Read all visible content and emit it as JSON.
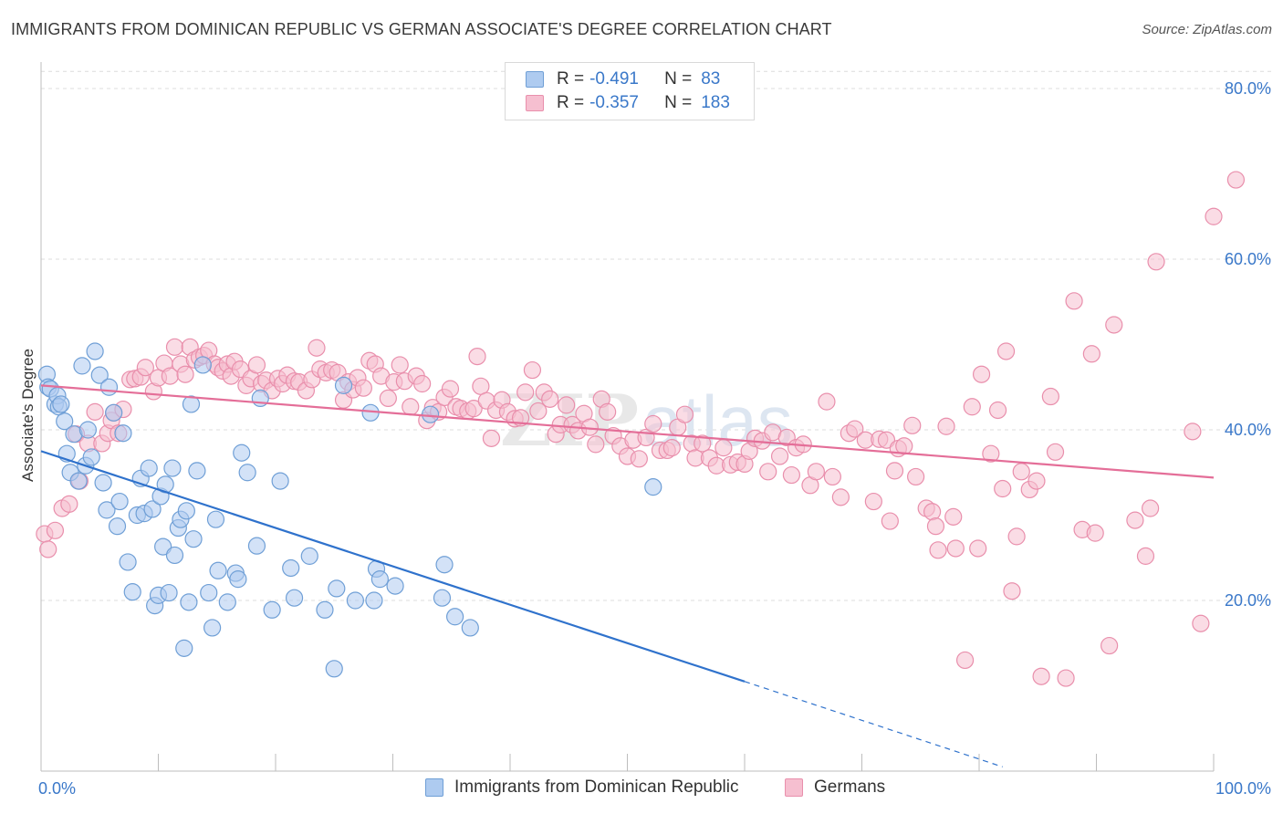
{
  "title": "IMMIGRANTS FROM DOMINICAN REPUBLIC VS GERMAN ASSOCIATE'S DEGREE CORRELATION CHART",
  "source": "Source: ZipAtlas.com",
  "watermark": {
    "zip": "ZIP",
    "atlas": "atlas"
  },
  "colors": {
    "blue_fill": "#aecbf0",
    "blue_stroke": "#6f9fd6",
    "blue_line": "#2f72cc",
    "pink_fill": "#f6bfd0",
    "pink_stroke": "#e98fac",
    "pink_line": "#e46e98",
    "accent_text": "#3a78c9",
    "grid": "#dcdcdc"
  },
  "legend_top": [
    {
      "r_label": "R =",
      "r_value": "-0.491",
      "n_label": "N =",
      "n_value": "83"
    },
    {
      "r_label": "R =",
      "r_value": "-0.357",
      "n_label": "N =",
      "n_value": "183"
    }
  ],
  "legend_bottom": [
    "Immigrants from Dominican Republic",
    "Germans"
  ],
  "chart_data": {
    "type": "scatter",
    "title": "IMMIGRANTS FROM DOMINICAN REPUBLIC VS GERMAN ASSOCIATE'S DEGREE CORRELATION CHART",
    "xlabel": "",
    "ylabel": "Associate's Degree",
    "xlim": [
      0,
      100
    ],
    "ylim": [
      0,
      82
    ],
    "x_tick_labels": [
      "0.0%",
      "100.0%"
    ],
    "y_ticks": [
      20,
      40,
      60,
      80
    ],
    "y_tick_labels": [
      "20.0%",
      "40.0%",
      "60.0%",
      "80.0%"
    ],
    "grid": true,
    "legend_position": "top-center",
    "series": [
      {
        "name": "Immigrants from Dominican Republic",
        "color": "blue",
        "r": -0.491,
        "n": 83,
        "trend": {
          "x0": 0,
          "y0": 37.5,
          "x1": 60,
          "y1": 10.5,
          "dash_to_x": 82,
          "dash_to_y": 0.5
        },
        "points": [
          [
            0.5,
            46.5
          ],
          [
            0.6,
            45
          ],
          [
            0.8,
            44.8
          ],
          [
            1.2,
            43
          ],
          [
            1.4,
            44
          ],
          [
            1.5,
            42.7
          ],
          [
            1.7,
            43
          ],
          [
            2,
            41
          ],
          [
            2.2,
            37.2
          ],
          [
            2.5,
            35
          ],
          [
            2.8,
            39.5
          ],
          [
            3.2,
            34
          ],
          [
            3.5,
            47.5
          ],
          [
            3.8,
            35.8
          ],
          [
            4,
            40
          ],
          [
            4.3,
            36.8
          ],
          [
            4.6,
            49.2
          ],
          [
            5,
            46.4
          ],
          [
            5.3,
            33.8
          ],
          [
            5.6,
            30.6
          ],
          [
            5.8,
            45
          ],
          [
            6.2,
            42
          ],
          [
            6.5,
            28.7
          ],
          [
            6.7,
            31.6
          ],
          [
            7,
            39.6
          ],
          [
            7.4,
            24.5
          ],
          [
            7.8,
            21
          ],
          [
            8.2,
            30
          ],
          [
            8.5,
            34.3
          ],
          [
            8.8,
            30.2
          ],
          [
            9.2,
            35.5
          ],
          [
            9.5,
            30.7
          ],
          [
            9.7,
            19.4
          ],
          [
            10,
            20.6
          ],
          [
            10.2,
            32.2
          ],
          [
            10.4,
            26.3
          ],
          [
            10.6,
            33.6
          ],
          [
            10.9,
            20.9
          ],
          [
            11.2,
            35.5
          ],
          [
            11.4,
            25.3
          ],
          [
            11.7,
            28.5
          ],
          [
            11.9,
            29.5
          ],
          [
            12.2,
            14.4
          ],
          [
            12.4,
            30.5
          ],
          [
            12.6,
            19.8
          ],
          [
            12.8,
            43
          ],
          [
            13,
            27.2
          ],
          [
            13.3,
            35.2
          ],
          [
            13.8,
            47.6
          ],
          [
            14.3,
            20.9
          ],
          [
            14.6,
            16.8
          ],
          [
            14.9,
            29.5
          ],
          [
            15.1,
            23.5
          ],
          [
            15.9,
            19.8
          ],
          [
            16.6,
            23.2
          ],
          [
            16.8,
            22.5
          ],
          [
            17.1,
            37.3
          ],
          [
            17.6,
            35
          ],
          [
            18.4,
            26.4
          ],
          [
            18.7,
            43.7
          ],
          [
            19.7,
            18.9
          ],
          [
            20.4,
            34
          ],
          [
            21.3,
            23.8
          ],
          [
            21.6,
            20.3
          ],
          [
            22.9,
            25.2
          ],
          [
            24.2,
            18.9
          ],
          [
            25,
            12
          ],
          [
            25.2,
            21.4
          ],
          [
            25.8,
            45.2
          ],
          [
            26.8,
            20
          ],
          [
            28.1,
            42
          ],
          [
            28.4,
            20
          ],
          [
            28.6,
            23.7
          ],
          [
            28.9,
            22.5
          ],
          [
            30.2,
            21.7
          ],
          [
            33.2,
            41.8
          ],
          [
            34.2,
            20.3
          ],
          [
            34.4,
            24.2
          ],
          [
            35.3,
            18.1
          ],
          [
            36.6,
            16.8
          ],
          [
            52.2,
            33.3
          ]
        ]
      },
      {
        "name": "Germans",
        "color": "pink",
        "r": -0.357,
        "n": 183,
        "trend": {
          "x0": 0,
          "y0": 45.2,
          "x1": 100,
          "y1": 34.4
        },
        "points": [
          [
            0.3,
            27.8
          ],
          [
            0.6,
            26
          ],
          [
            1.2,
            28.2
          ],
          [
            1.8,
            30.8
          ],
          [
            2.4,
            31.3
          ],
          [
            3,
            39.5
          ],
          [
            3.3,
            34
          ],
          [
            4,
            38.4
          ],
          [
            4.6,
            42.1
          ],
          [
            5.2,
            38.4
          ],
          [
            5.7,
            39.6
          ],
          [
            6,
            41.1
          ],
          [
            6.2,
            42
          ],
          [
            6.6,
            39.6
          ],
          [
            7,
            42.4
          ],
          [
            7.6,
            45.9
          ],
          [
            8,
            46
          ],
          [
            8.5,
            46.2
          ],
          [
            8.9,
            47.3
          ],
          [
            9.6,
            44.5
          ],
          [
            10,
            46.1
          ],
          [
            10.5,
            47.8
          ],
          [
            11,
            46.3
          ],
          [
            11.4,
            49.7
          ],
          [
            11.9,
            47.7
          ],
          [
            12.3,
            46.5
          ],
          [
            12.7,
            49.7
          ],
          [
            13.1,
            48.2
          ],
          [
            13.5,
            48.5
          ],
          [
            13.9,
            48.7
          ],
          [
            14.3,
            49.3
          ],
          [
            14.8,
            47.7
          ],
          [
            15.1,
            47.3
          ],
          [
            15.5,
            46.9
          ],
          [
            15.9,
            47.7
          ],
          [
            16.2,
            46.3
          ],
          [
            16.5,
            48
          ],
          [
            17,
            47.1
          ],
          [
            17.5,
            45.2
          ],
          [
            17.9,
            46
          ],
          [
            18.4,
            47.6
          ],
          [
            18.8,
            45.4
          ],
          [
            19.2,
            45.8
          ],
          [
            19.7,
            44.6
          ],
          [
            20.2,
            46
          ],
          [
            20.6,
            45.4
          ],
          [
            21,
            46.4
          ],
          [
            21.6,
            45.7
          ],
          [
            22,
            45.6
          ],
          [
            22.6,
            44.6
          ],
          [
            23.1,
            45.9
          ],
          [
            23.5,
            49.6
          ],
          [
            23.8,
            47.1
          ],
          [
            24.3,
            46.7
          ],
          [
            24.8,
            47
          ],
          [
            25.3,
            46.7
          ],
          [
            25.8,
            43.5
          ],
          [
            26.2,
            45.6
          ],
          [
            26.6,
            44.7
          ],
          [
            27,
            46.1
          ],
          [
            27.5,
            44.9
          ],
          [
            28,
            48.1
          ],
          [
            28.5,
            47.7
          ],
          [
            29,
            46.3
          ],
          [
            29.6,
            43.7
          ],
          [
            30.1,
            45.6
          ],
          [
            30.6,
            47.6
          ],
          [
            31,
            45.7
          ],
          [
            31.5,
            42.7
          ],
          [
            32,
            46.3
          ],
          [
            32.5,
            45.4
          ],
          [
            32.9,
            41.1
          ],
          [
            33.4,
            42.6
          ],
          [
            33.9,
            42.1
          ],
          [
            34.4,
            43.8
          ],
          [
            34.9,
            44.8
          ],
          [
            35.4,
            42.7
          ],
          [
            35.8,
            42.5
          ],
          [
            36.4,
            42.2
          ],
          [
            36.9,
            42.5
          ],
          [
            37.2,
            48.6
          ],
          [
            37.5,
            45.1
          ],
          [
            38,
            43.4
          ],
          [
            38.4,
            39
          ],
          [
            38.8,
            42.3
          ],
          [
            39.3,
            43.5
          ],
          [
            39.8,
            42.1
          ],
          [
            40.4,
            41.3
          ],
          [
            40.9,
            41.4
          ],
          [
            41.3,
            44.4
          ],
          [
            41.9,
            47
          ],
          [
            42.4,
            42.2
          ],
          [
            42.9,
            44.4
          ],
          [
            43.4,
            43.6
          ],
          [
            43.9,
            39.5
          ],
          [
            44.3,
            40.6
          ],
          [
            44.8,
            42.9
          ],
          [
            45.3,
            40.6
          ],
          [
            45.8,
            39.9
          ],
          [
            46.3,
            41.9
          ],
          [
            46.8,
            40.3
          ],
          [
            47.3,
            38.3
          ],
          [
            47.8,
            43.6
          ],
          [
            48.3,
            42.1
          ],
          [
            48.8,
            39.3
          ],
          [
            49.4,
            38.1
          ],
          [
            50,
            36.9
          ],
          [
            50.5,
            38.8
          ],
          [
            51,
            36.6
          ],
          [
            51.6,
            39.1
          ],
          [
            52.2,
            40.7
          ],
          [
            52.8,
            37.6
          ],
          [
            53.4,
            37.6
          ],
          [
            53.8,
            37.9
          ],
          [
            54.3,
            40.3
          ],
          [
            54.9,
            41.8
          ],
          [
            55.5,
            38.4
          ],
          [
            55.8,
            36.7
          ],
          [
            56.4,
            38.4
          ],
          [
            57,
            36.7
          ],
          [
            57.6,
            35.8
          ],
          [
            58.2,
            37.9
          ],
          [
            58.8,
            35.9
          ],
          [
            59.4,
            36.2
          ],
          [
            60,
            36
          ],
          [
            60.4,
            37.5
          ],
          [
            60.9,
            39
          ],
          [
            61.5,
            38.7
          ],
          [
            62,
            35.1
          ],
          [
            62.4,
            39.7
          ],
          [
            63,
            36.9
          ],
          [
            63.6,
            39.1
          ],
          [
            64,
            34.7
          ],
          [
            64.4,
            37.9
          ],
          [
            65,
            38.3
          ],
          [
            65.6,
            33.5
          ],
          [
            66.1,
            35.1
          ],
          [
            67,
            43.3
          ],
          [
            67.5,
            34.5
          ],
          [
            68.2,
            32.1
          ],
          [
            68.9,
            39.6
          ],
          [
            69.4,
            40.1
          ],
          [
            70.3,
            38.8
          ],
          [
            71,
            31.6
          ],
          [
            71.5,
            38.9
          ],
          [
            72.1,
            38.8
          ],
          [
            72.4,
            29.3
          ],
          [
            72.8,
            35.2
          ],
          [
            73.1,
            37.8
          ],
          [
            73.6,
            38.1
          ],
          [
            74.3,
            40.5
          ],
          [
            74.6,
            34.5
          ],
          [
            75.5,
            30.8
          ],
          [
            76,
            30.4
          ],
          [
            76.3,
            28.7
          ],
          [
            76.5,
            25.9
          ],
          [
            77.2,
            40.4
          ],
          [
            77.8,
            29.8
          ],
          [
            78,
            26.1
          ],
          [
            78.8,
            13
          ],
          [
            79.4,
            42.7
          ],
          [
            79.9,
            26.1
          ],
          [
            80.2,
            46.5
          ],
          [
            81,
            37.2
          ],
          [
            81.6,
            42.3
          ],
          [
            82,
            33.1
          ],
          [
            82.3,
            49.2
          ],
          [
            82.8,
            21.1
          ],
          [
            83.2,
            27.5
          ],
          [
            83.6,
            35.1
          ],
          [
            84.3,
            33
          ],
          [
            84.9,
            34
          ],
          [
            85.3,
            11.1
          ],
          [
            86.1,
            43.9
          ],
          [
            86.5,
            37.4
          ],
          [
            87.4,
            10.9
          ],
          [
            88.1,
            55.1
          ],
          [
            88.8,
            28.3
          ],
          [
            89.6,
            48.9
          ],
          [
            89.9,
            27.9
          ],
          [
            91.1,
            14.7
          ],
          [
            91.5,
            52.3
          ],
          [
            93.3,
            29.4
          ],
          [
            94.2,
            25.2
          ],
          [
            94.6,
            30.8
          ],
          [
            95.1,
            59.7
          ],
          [
            98.2,
            39.8
          ],
          [
            98.9,
            17.3
          ],
          [
            100,
            65
          ],
          [
            101.9,
            69.3
          ]
        ]
      }
    ]
  }
}
